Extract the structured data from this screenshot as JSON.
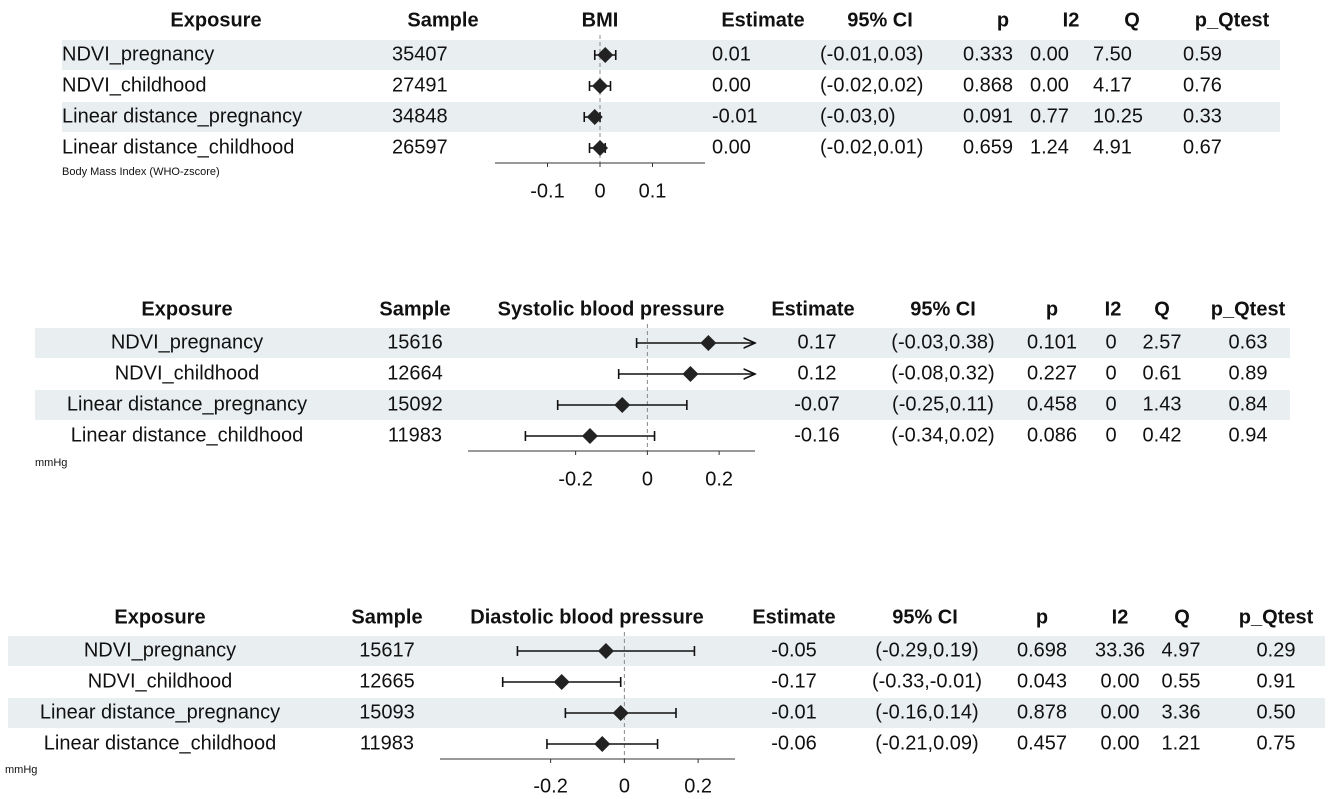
{
  "chart_data": [
    {
      "type": "forest",
      "columns": [
        "Exposure",
        "Sample",
        "BMI",
        "Estimate",
        "95% CI",
        "p",
        "I2",
        "Q",
        "p_Qtest"
      ],
      "exposures": [
        "NDVI_pregnancy",
        "NDVI_childhood",
        "Linear distance_pregnancy",
        "Linear distance_childhood"
      ],
      "samples": [
        35407,
        27491,
        34848,
        26597
      ],
      "values": [
        0.01,
        0,
        -0.01,
        0
      ],
      "value_labels": [
        "0.01",
        "0.00",
        "-0.01",
        "0.00"
      ],
      "ci_low": [
        -0.01,
        -0.02,
        -0.03,
        -0.02
      ],
      "ci_high": [
        0.03,
        0.02,
        0,
        0.01
      ],
      "ci_labels": [
        "(-0.01,0.03)",
        "(-0.02,0.02)",
        "(-0.03,0)",
        "(-0.02,0.01)"
      ],
      "p": [
        "0.333",
        "0.868",
        "0.091",
        "0.659"
      ],
      "i2": [
        "0.00",
        "0.00",
        "0.77",
        "1.24"
      ],
      "q": [
        "7.50",
        "4.17",
        "10.25",
        "4.91"
      ],
      "p_qtest": [
        "0.59",
        "0.76",
        "0.33",
        "0.67"
      ],
      "x_label": "Body Mass Index (WHO-zscore)",
      "xlim": [
        -0.2,
        0.2
      ],
      "xticks": [
        -0.1,
        0,
        0.1
      ]
    },
    {
      "type": "forest",
      "columns": [
        "Exposure",
        "Sample",
        "Systolic blood pressure",
        "Estimate",
        "95% CI",
        "p",
        "I2",
        "Q",
        "p_Qtest"
      ],
      "exposures": [
        "NDVI_pregnancy",
        "NDVI_childhood",
        "Linear distance_pregnancy",
        "Linear distance_childhood"
      ],
      "samples": [
        15616,
        12664,
        15092,
        11983
      ],
      "values": [
        0.17,
        0.12,
        -0.07,
        -0.16
      ],
      "value_labels": [
        "0.17",
        "0.12",
        "-0.07",
        "-0.16"
      ],
      "ci_low": [
        -0.03,
        -0.08,
        -0.25,
        -0.34
      ],
      "ci_high": [
        0.38,
        0.32,
        0.11,
        0.02
      ],
      "ci_labels": [
        "(-0.03,0.38)",
        "(-0.08,0.32)",
        "(-0.25,0.11)",
        "(-0.34,0.02)"
      ],
      "p": [
        "0.101",
        "0.227",
        "0.458",
        "0.086"
      ],
      "i2": [
        "0",
        "0",
        "0",
        "0"
      ],
      "q": [
        "2.57",
        "0.61",
        "1.43",
        "0.42"
      ],
      "p_qtest": [
        "0.63",
        "0.89",
        "0.84",
        "0.94"
      ],
      "x_label": "mmHg",
      "xlim": [
        -0.5,
        0.3
      ],
      "xticks": [
        -0.2,
        0,
        0.2
      ]
    },
    {
      "type": "forest",
      "columns": [
        "Exposure",
        "Sample",
        "Diastolic blood pressure",
        "Estimate",
        "95% CI",
        "p",
        "I2",
        "Q",
        "p_Qtest"
      ],
      "exposures": [
        "NDVI_pregnancy",
        "NDVI_childhood",
        "Linear distance_pregnancy",
        "Linear distance_childhood"
      ],
      "samples": [
        15617,
        12665,
        15093,
        11983
      ],
      "values": [
        -0.05,
        -0.17,
        -0.01,
        -0.06
      ],
      "value_labels": [
        "-0.05",
        "-0.17",
        "-0.01",
        "-0.06"
      ],
      "ci_low": [
        -0.29,
        -0.33,
        -0.16,
        -0.21
      ],
      "ci_high": [
        0.19,
        -0.01,
        0.14,
        0.09
      ],
      "ci_labels": [
        "(-0.29,0.19)",
        "(-0.33,-0.01)",
        "(-0.16,0.14)",
        "(-0.21,0.09)"
      ],
      "p": [
        "0.698",
        "0.043",
        "0.878",
        "0.457"
      ],
      "i2": [
        "33.36",
        "0.00",
        "0.00",
        "0.00"
      ],
      "q": [
        "4.97",
        "0.55",
        "3.36",
        "1.21"
      ],
      "p_qtest": [
        "0.29",
        "0.91",
        "0.50",
        "0.75"
      ],
      "x_label": "mmHg",
      "xlim": [
        -0.5,
        0.3
      ],
      "xticks": [
        -0.2,
        0,
        0.2
      ]
    }
  ]
}
